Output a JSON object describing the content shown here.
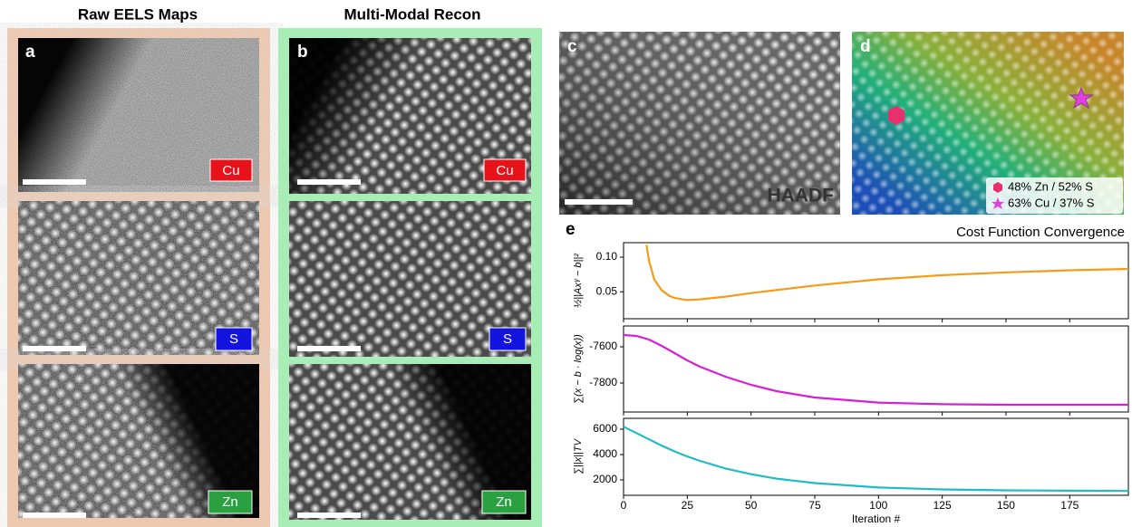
{
  "figure": {
    "panel_a": {
      "letter": "a",
      "title": "Raw EELS Maps",
      "maps": [
        "Cu",
        "S",
        "Zn"
      ]
    },
    "panel_b": {
      "letter": "b",
      "title": "Multi-Modal Recon",
      "maps": [
        "Cu",
        "S",
        "Zn"
      ]
    },
    "panel_c": {
      "letter": "c",
      "label": "HAADF"
    },
    "panel_d": {
      "letter": "d",
      "legend": [
        "48% Zn / 52% S",
        "63% Cu / 37% S"
      ]
    },
    "panel_e": {
      "letter": "e"
    }
  },
  "chart_data": [
    {
      "type": "line",
      "title": "Cost Function Convergence",
      "ylabel": "½||Axᵞ − b||²",
      "x": [
        9,
        10,
        12,
        15,
        18,
        20,
        25,
        30,
        40,
        50,
        75,
        100,
        125,
        150,
        175,
        198
      ],
      "series": [
        {
          "color": "#f59b1a",
          "values": [
            0.118,
            0.095,
            0.068,
            0.052,
            0.044,
            0.041,
            0.038,
            0.039,
            0.043,
            0.048,
            0.059,
            0.068,
            0.074,
            0.078,
            0.081,
            0.083
          ]
        }
      ],
      "xlim": [
        0,
        198
      ],
      "xticks": [
        0,
        25,
        50,
        75,
        100,
        125,
        150,
        175
      ],
      "ylim": [
        0.011,
        0.121
      ],
      "yticks": [
        0.05,
        {
          "value": 0.1,
          "label": "0.10"
        }
      ]
    },
    {
      "type": "line",
      "ylabel": "∑(x − b · log(x))",
      "x": [
        0,
        5,
        10,
        15,
        20,
        25,
        30,
        40,
        50,
        60,
        75,
        100,
        125,
        150,
        175,
        198
      ],
      "series": [
        {
          "color": "#d61fd6",
          "values": [
            -7535,
            -7540,
            -7560,
            -7595,
            -7635,
            -7675,
            -7710,
            -7765,
            -7810,
            -7845,
            -7880,
            -7908,
            -7917,
            -7920,
            -7920,
            -7920
          ]
        }
      ],
      "xlim": [
        0,
        198
      ],
      "xticks": [
        0,
        25,
        50,
        75,
        100,
        125,
        150,
        175
      ],
      "ylim": [
        -7960,
        -7485
      ],
      "yticks": [
        -7600,
        -7800
      ]
    },
    {
      "type": "line",
      "ylabel": "∑||x||TV",
      "xlabel": "Iteration #",
      "x": [
        0,
        5,
        10,
        15,
        20,
        25,
        30,
        40,
        50,
        60,
        75,
        100,
        125,
        150,
        175,
        198
      ],
      "series": [
        {
          "color": "#1fbcc4",
          "values": [
            6200,
            5700,
            5200,
            4700,
            4250,
            3850,
            3500,
            2900,
            2450,
            2100,
            1750,
            1400,
            1250,
            1180,
            1150,
            1130
          ]
        }
      ],
      "xlim": [
        0,
        198
      ],
      "xticks": [
        0,
        25,
        50,
        75,
        100,
        125,
        150,
        175
      ],
      "ylim": [
        786,
        6857
      ],
      "yticks": [
        2000,
        4000,
        6000
      ]
    }
  ]
}
